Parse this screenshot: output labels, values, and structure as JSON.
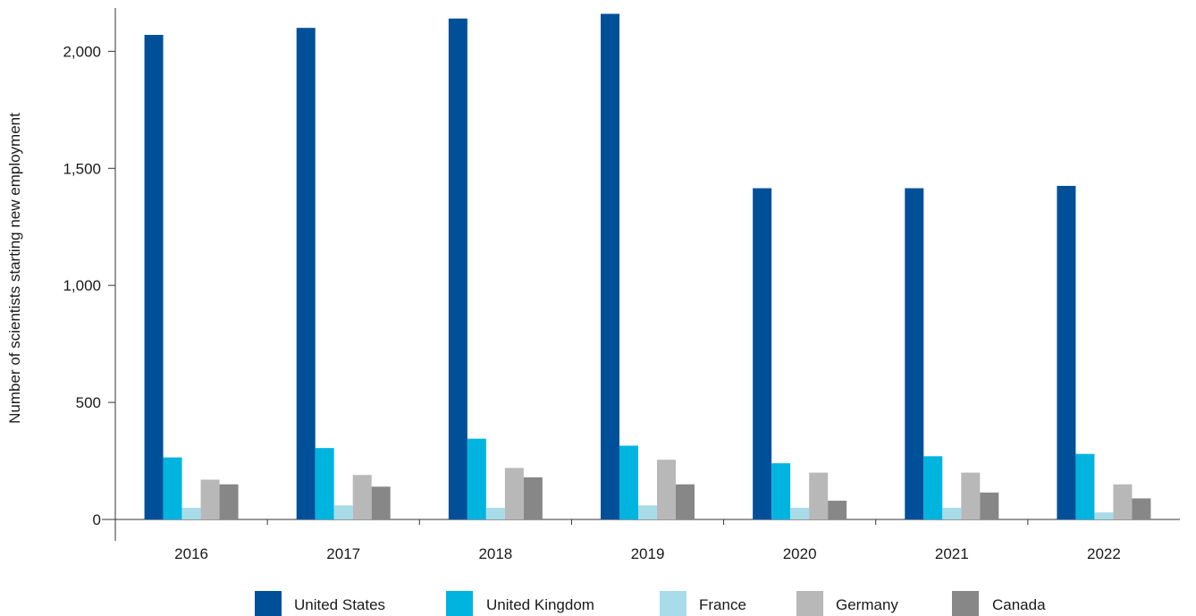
{
  "chart_data": {
    "type": "bar",
    "title": "",
    "xlabel": "",
    "ylabel": "Number of scientists starting new employment",
    "ylim": [
      0,
      2200
    ],
    "yticks": [
      0,
      500,
      1000,
      1500,
      2000
    ],
    "ytick_labels": [
      "0",
      "500",
      "1,000",
      "1,500",
      "2,000"
    ],
    "categories": [
      "2016",
      "2017",
      "2018",
      "2019",
      "2020",
      "2021",
      "2022"
    ],
    "grid": false,
    "legend_position": "bottom",
    "series": [
      {
        "name": "United States",
        "color": "#005099",
        "values": [
          2070,
          2100,
          2140,
          2160,
          1415,
          1415,
          1425
        ]
      },
      {
        "name": "United Kingdom",
        "color": "#00b4e0",
        "values": [
          265,
          305,
          345,
          315,
          240,
          270,
          280
        ]
      },
      {
        "name": "France",
        "color": "#a8dce8",
        "values": [
          50,
          60,
          50,
          60,
          50,
          50,
          30
        ]
      },
      {
        "name": "Germany",
        "color": "#b8b8b8",
        "values": [
          170,
          190,
          220,
          255,
          200,
          200,
          150
        ]
      },
      {
        "name": "Canada",
        "color": "#878787",
        "values": [
          150,
          140,
          180,
          150,
          80,
          115,
          90
        ]
      }
    ]
  }
}
